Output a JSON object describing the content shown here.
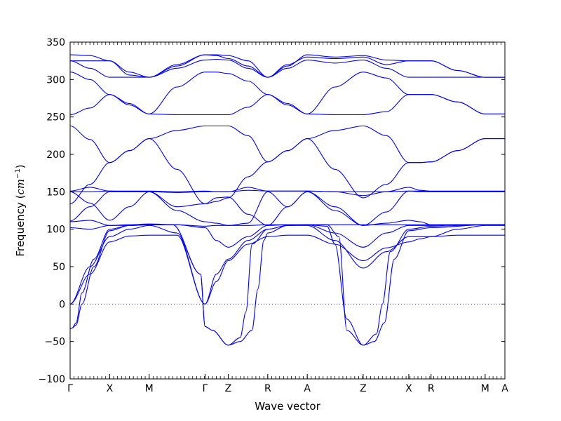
{
  "chart_data": {
    "type": "line",
    "title": "",
    "xlabel": "Wave vector",
    "ylabel": "Frequency",
    "ylabel_unit_base": "cm",
    "ylabel_unit_exp": "−1",
    "ylim": [
      -100,
      350
    ],
    "y_ticks": [
      -100,
      -50,
      0,
      50,
      100,
      150,
      200,
      250,
      300,
      350
    ],
    "xlim": [
      0,
      11
    ],
    "x_points": [
      {
        "label": "Γ",
        "x": 0
      },
      {
        "label": "X",
        "x": 1
      },
      {
        "label": "M",
        "x": 2
      },
      {
        "label": "Γ",
        "x": 3.414
      },
      {
        "label": "Z",
        "x": 4
      },
      {
        "label": "R",
        "x": 5
      },
      {
        "label": "A",
        "x": 6
      },
      {
        "label": "Z",
        "x": 7.414
      },
      {
        "label": "X",
        "x": 8.568
      },
      {
        "label": "R",
        "x": 9.132
      },
      {
        "label": "M",
        "x": 10.5
      },
      {
        "label": "A",
        "x": 11
      }
    ],
    "zero_line": true,
    "line_color": "#0000ff",
    "series": [
      {
        "x": [
          0,
          0.5,
          1,
          1.5,
          2,
          2.7,
          3.414,
          3.7,
          4,
          4.5,
          5,
          5.5,
          6,
          6.7,
          7.414,
          8,
          8.568,
          8.85,
          9.132,
          9.8,
          10.5,
          10.75,
          11
        ],
        "y": [
          333,
          332,
          325,
          310,
          303,
          318,
          333,
          333,
          332,
          325,
          303,
          318,
          333,
          330,
          332,
          326,
          325,
          325,
          325,
          312,
          303,
          303,
          303
        ]
      },
      {
        "x": [
          0,
          0.5,
          1,
          1.5,
          2,
          2.7,
          3.414,
          3.7,
          4,
          4.5,
          5,
          5.5,
          6,
          6.7,
          7.414,
          8,
          8.568,
          8.85,
          9.132,
          9.8,
          10.5,
          10.75,
          11
        ],
        "y": [
          325,
          325,
          325,
          306,
          303,
          320,
          333,
          332,
          328,
          318,
          303,
          320,
          330,
          328,
          330,
          320,
          325,
          325,
          325,
          312,
          303,
          303,
          303
        ]
      },
      {
        "x": [
          0,
          0.5,
          1,
          1.5,
          2,
          2.7,
          3.414,
          3.7,
          4,
          4.5,
          5,
          5.5,
          6,
          6.7,
          7.414,
          8,
          8.568,
          8.85,
          9.132,
          9.8,
          10.5,
          10.75,
          11
        ],
        "y": [
          325,
          315,
          303,
          303,
          303,
          315,
          326,
          327,
          326,
          315,
          303,
          315,
          326,
          322,
          326,
          315,
          303,
          303,
          303,
          303,
          303,
          303,
          303
        ]
      },
      {
        "x": [
          0,
          0.5,
          1,
          1.5,
          2,
          2.7,
          3.414,
          3.7,
          4,
          4.5,
          5,
          5.5,
          6,
          6.7,
          7.414,
          8,
          8.568,
          8.85,
          9.132,
          9.8,
          10.5,
          10.75,
          11
        ],
        "y": [
          310,
          300,
          280,
          268,
          254,
          290,
          310,
          310,
          308,
          298,
          280,
          268,
          254,
          290,
          310,
          302,
          280,
          280,
          280,
          270,
          254,
          254,
          254
        ]
      },
      {
        "x": [
          0,
          0.5,
          1,
          1.5,
          2,
          2.7,
          3.414,
          3.7,
          4,
          4.5,
          5,
          5.5,
          6,
          6.7,
          7.414,
          8,
          8.568,
          8.85,
          9.132,
          9.8,
          10.5,
          10.75,
          11
        ],
        "y": [
          253,
          262,
          280,
          266,
          254,
          253,
          253,
          253,
          253,
          263,
          280,
          266,
          254,
          253,
          253,
          257,
          280,
          280,
          280,
          270,
          254,
          254,
          254
        ]
      },
      {
        "x": [
          0,
          0.5,
          1,
          1.5,
          2,
          2.7,
          3.414,
          3.7,
          4,
          4.5,
          5,
          5.5,
          6,
          6.7,
          7.414,
          8,
          8.568,
          8.85,
          9.132,
          9.8,
          10.5,
          10.75,
          11
        ],
        "y": [
          238,
          220,
          189,
          205,
          221,
          232,
          238,
          238,
          238,
          225,
          190,
          205,
          221,
          232,
          238,
          225,
          189,
          189,
          190,
          205,
          221,
          221,
          221
        ]
      },
      {
        "x": [
          0,
          0.5,
          1,
          1.5,
          2,
          2.7,
          3.414,
          3.7,
          4,
          4.5,
          5,
          5.5,
          6,
          6.7,
          7.414,
          8,
          8.568,
          8.85,
          9.132,
          9.8,
          10.5,
          10.75,
          11
        ],
        "y": [
          134,
          160,
          189,
          205,
          221,
          180,
          134,
          137,
          142,
          170,
          190,
          205,
          221,
          180,
          142,
          160,
          189,
          189,
          190,
          205,
          221,
          221,
          221
        ]
      },
      {
        "x": [
          0,
          0.5,
          1,
          1.5,
          2,
          2.7,
          3.414,
          3.7,
          4,
          4.5,
          5,
          5.5,
          6,
          6.7,
          7.414,
          8,
          8.568,
          8.85,
          9.132,
          9.8,
          10.5,
          10.75,
          11
        ],
        "y": [
          151,
          156,
          151,
          151,
          151,
          150,
          151,
          150,
          150,
          156,
          151,
          151,
          151,
          150,
          145,
          150,
          156,
          152,
          151,
          151,
          151,
          151,
          151
        ]
      },
      {
        "x": [
          0,
          0.5,
          1,
          1.5,
          2,
          2.7,
          3.414,
          3.7,
          4,
          4.5,
          5,
          5.5,
          6,
          6.7,
          7.414,
          8,
          8.568,
          8.85,
          9.132,
          9.8,
          10.5,
          10.75,
          11
        ],
        "y": [
          150,
          150,
          151,
          150,
          150,
          149,
          150,
          150,
          150,
          152,
          151,
          151,
          151,
          150,
          150,
          150,
          151,
          151,
          150,
          150,
          150,
          150,
          150
        ]
      },
      {
        "x": [
          0,
          0.5,
          1,
          1.5,
          2,
          2.7,
          3.414,
          3.7,
          4,
          4.5,
          5,
          5.5,
          6,
          6.7,
          7.414,
          8,
          8.568,
          8.85,
          9.132,
          9.8,
          10.5,
          10.75,
          11
        ],
        "y": [
          111,
          130,
          150,
          150,
          150,
          130,
          134,
          142,
          143,
          120,
          105,
          130,
          150,
          130,
          105,
          123,
          151,
          150,
          150,
          150,
          150,
          150,
          150
        ]
      },
      {
        "x": [
          0,
          0.5,
          1,
          1.5,
          2,
          2.7,
          3.414,
          3.7,
          4,
          4.5,
          5,
          5.5,
          6,
          6.7,
          7.414,
          8,
          8.568,
          8.85,
          9.132,
          9.8,
          10.5,
          10.75,
          11
        ],
        "y": [
          150,
          135,
          112,
          130,
          150,
          125,
          110,
          108,
          105,
          108,
          150,
          130,
          150,
          125,
          105,
          108,
          112,
          110,
          106,
          106,
          106,
          106,
          106
        ]
      },
      {
        "x": [
          0,
          0.5,
          1,
          1.5,
          2,
          2.7,
          3.414,
          3.7,
          4,
          4.5,
          5,
          5.5,
          6,
          6.7,
          7.414,
          8,
          8.568,
          8.85,
          9.132,
          9.8,
          10.5,
          10.75,
          11
        ],
        "y": [
          110,
          112,
          105,
          105,
          106,
          106,
          104,
          105,
          105,
          105,
          106,
          106,
          106,
          106,
          106,
          106,
          106,
          106,
          106,
          106,
          106,
          106,
          106
        ]
      },
      {
        "x": [
          0,
          0.5,
          1,
          1.5,
          2,
          2.7,
          3.414,
          3.7,
          4,
          4.5,
          5,
          5.5,
          6,
          6.7,
          7.414,
          8,
          8.568,
          8.85,
          9.132,
          9.8,
          10.5,
          10.75,
          11
        ],
        "y": [
          102,
          100,
          105,
          106,
          107,
          106,
          102,
          85,
          76,
          90,
          105,
          106,
          106,
          95,
          76,
          95,
          105,
          105,
          105,
          106,
          106,
          106,
          106
        ]
      },
      {
        "x": [
          0,
          0.5,
          1,
          1.5,
          2,
          2.7,
          3.414,
          3.7,
          4,
          4.5,
          5,
          5.5,
          6,
          6.7,
          7.414,
          8,
          8.568,
          8.85,
          9.132,
          9.8,
          10.5,
          10.75,
          11
        ],
        "y": [
          0,
          40,
          83,
          91,
          92,
          92,
          0,
          30,
          58,
          80,
          90,
          92,
          92,
          80,
          58,
          75,
          83,
          87,
          90,
          92,
          92,
          92,
          92
        ]
      },
      {
        "x": [
          0,
          0.5,
          1,
          1.5,
          2,
          2.7,
          3.414,
          3.7,
          4,
          4.5,
          5,
          5.5,
          6,
          6.7,
          7.414,
          8,
          8.568,
          8.85,
          9.132,
          9.8,
          10.5,
          10.75,
          11
        ],
        "y": [
          0,
          50,
          90,
          100,
          105,
          95,
          0,
          40,
          60,
          85,
          100,
          105,
          105,
          85,
          48,
          70,
          90,
          90,
          90,
          100,
          105,
          105,
          105
        ]
      },
      {
        "x": [
          0,
          0.05,
          0.15,
          0.3,
          0.6,
          1,
          1.5,
          2,
          2.6,
          3.3,
          3.414,
          3.6,
          4,
          4.3,
          4.45,
          4.6,
          5,
          5.5,
          6,
          6.5,
          6.8,
          7,
          7.414,
          7.75,
          7.9,
          8.1,
          8.568,
          9.132,
          10.5,
          11
        ],
        "y": [
          -33,
          -32,
          -25,
          15,
          60,
          100,
          105,
          106,
          106,
          40,
          -30,
          -35,
          -55,
          -45,
          -10,
          80,
          100,
          105,
          106,
          106,
          90,
          -35,
          -55,
          -40,
          0,
          70,
          100,
          104,
          106,
          106
        ]
      },
      {
        "x": [
          0,
          0.05,
          0.15,
          0.3,
          0.6,
          1,
          1.5,
          2,
          2.6,
          3.3,
          3.414,
          3.6,
          4,
          4.3,
          4.6,
          4.75,
          4.9,
          5,
          5.5,
          6,
          6.5,
          6.7,
          7,
          7.414,
          7.7,
          7.95,
          8.2,
          8.568,
          9.132,
          10.5,
          11
        ],
        "y": [
          -33,
          -32,
          -28,
          0,
          50,
          98,
          105,
          106,
          106,
          40,
          -30,
          -35,
          -55,
          -50,
          -35,
          20,
          85,
          95,
          105,
          106,
          104,
          80,
          -20,
          -55,
          -50,
          -25,
          60,
          98,
          102,
          106,
          106
        ]
      }
    ]
  }
}
